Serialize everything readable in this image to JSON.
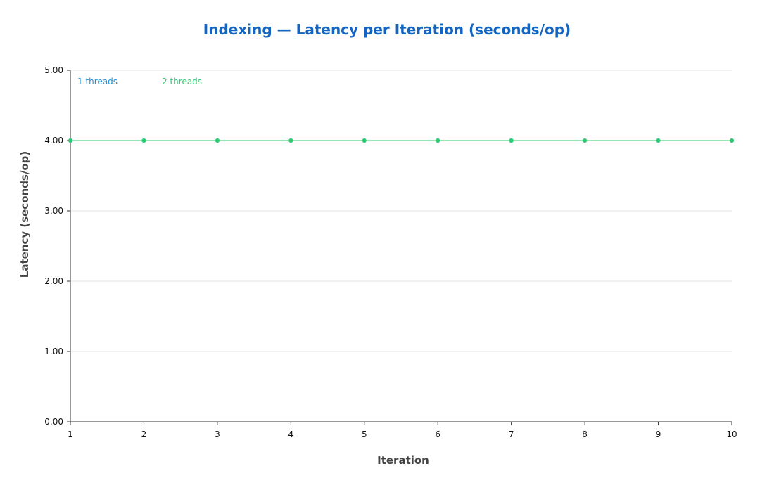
{
  "chart_data": {
    "type": "line",
    "title": "Indexing — Latency per Iteration (seconds/op)",
    "xlabel": "Iteration",
    "ylabel": "Latency (seconds/op)",
    "x": [
      1,
      2,
      3,
      4,
      5,
      6,
      7,
      8,
      9,
      10
    ],
    "x_tick_labels": [
      "1",
      "2",
      "3",
      "4",
      "5",
      "6",
      "7",
      "8",
      "9",
      "10"
    ],
    "xlim": [
      1,
      10
    ],
    "ylim": [
      0,
      5
    ],
    "y_ticks": [
      0,
      1,
      2,
      3,
      4,
      5
    ],
    "y_tick_labels": [
      "0.00",
      "1.00",
      "2.00",
      "3.00",
      "4.00",
      "5.00"
    ],
    "grid": true,
    "legend_position": "top-left",
    "series": [
      {
        "name": "1 threads",
        "color": "#1f8fd6",
        "values": [
          4,
          4,
          4,
          4,
          4,
          4,
          4,
          4,
          4,
          4
        ]
      },
      {
        "name": "2 threads",
        "color": "#2ecc71",
        "values": [
          4,
          4,
          4,
          4,
          4,
          4,
          4,
          4,
          4,
          4
        ]
      }
    ]
  }
}
